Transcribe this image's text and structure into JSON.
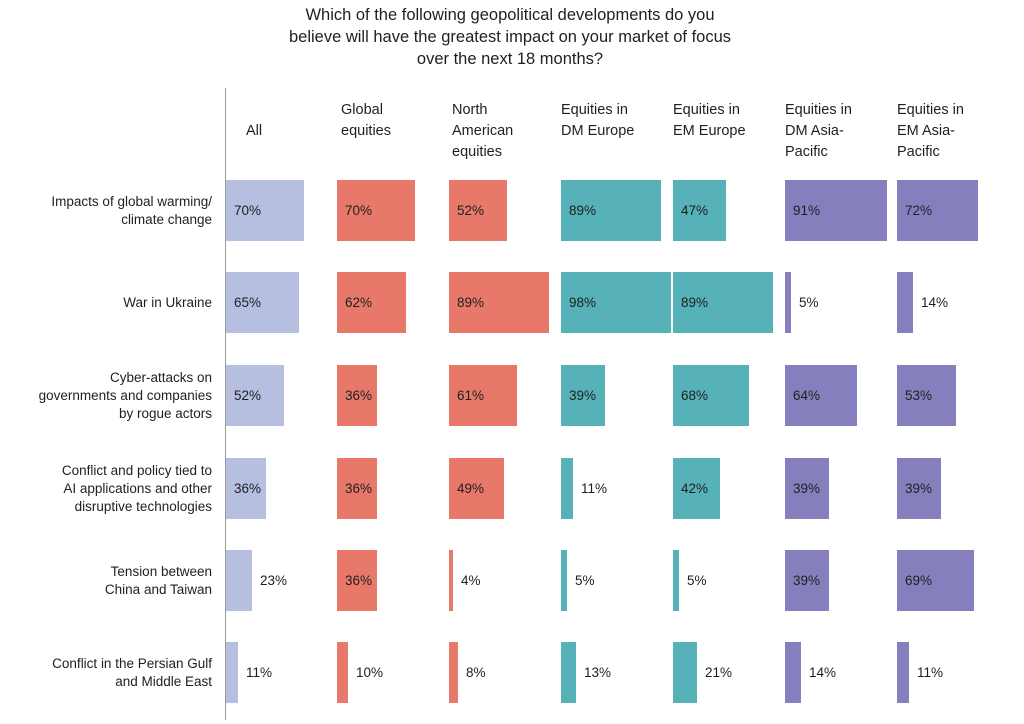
{
  "chart_data": {
    "type": "bar",
    "title": "Which of the following geopolitical developments do you\nbelieve will have the greatest impact on your market of focus\nover the next 18 months?",
    "columns": [
      {
        "name": "All",
        "color": "#b7bfe0"
      },
      {
        "name": "Global\nequities",
        "color": "#e8786a"
      },
      {
        "name": "North\nAmerican\nequities",
        "color": "#e8786a"
      },
      {
        "name": "Equities in\nDM Europe",
        "color": "#57b1b8"
      },
      {
        "name": "Equities in\nEM Europe",
        "color": "#57b1b8"
      },
      {
        "name": "Equities in\nDM Asia-\nPacific",
        "color": "#8580bd"
      },
      {
        "name": "Equities in\nEM Asia-\nPacific",
        "color": "#8580bd"
      }
    ],
    "categories": [
      "Impacts of global warming/\nclimate change",
      "War in Ukraine",
      "Cyber-attacks on\ngovernments and companies\nby rogue actors",
      "Conflict and policy tied to\nAI applications and other\ndisruptive technologies",
      "Tension between\nChina and Taiwan",
      "Conflict in the Persian Gulf\nand Middle East"
    ],
    "values": [
      [
        70,
        70,
        52,
        89,
        47,
        91,
        72
      ],
      [
        65,
        62,
        89,
        98,
        89,
        5,
        14
      ],
      [
        52,
        36,
        61,
        39,
        68,
        64,
        53
      ],
      [
        36,
        36,
        49,
        11,
        42,
        39,
        39
      ],
      [
        23,
        36,
        4,
        5,
        5,
        39,
        69
      ],
      [
        11,
        10,
        8,
        13,
        21,
        14,
        11
      ]
    ],
    "value_suffix": "%",
    "xlim": [
      0,
      100
    ]
  }
}
